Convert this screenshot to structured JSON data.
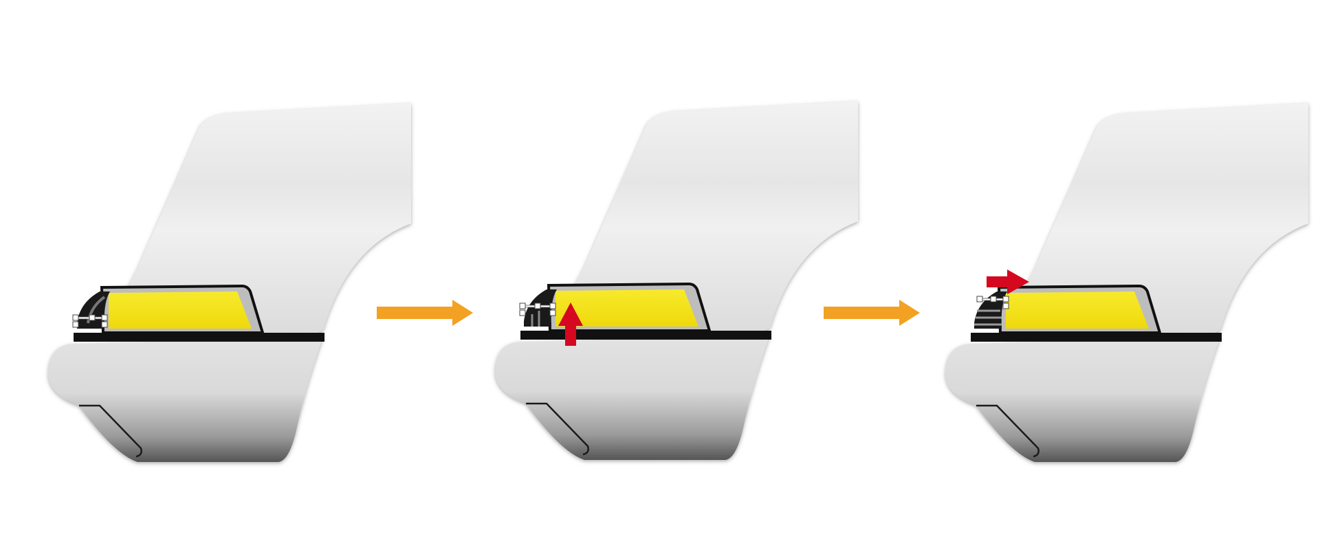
{
  "diagram": {
    "steps": [
      {
        "id": 1,
        "action_arrow": null
      },
      {
        "id": 2,
        "action_arrow": "up"
      },
      {
        "id": 3,
        "action_arrow": "right"
      }
    ],
    "transition_arrows": 2,
    "colors": {
      "background": "#ffffff",
      "body_light": "#e9e9e9",
      "body_shadow": "#8a8a8a",
      "lamp_yellow": "#f5e51a",
      "trim_black": "#111111",
      "transition_arrow": "#f2a122",
      "action_arrow": "#d5081f"
    },
    "icons": {
      "transition_arrow": "arrow-right-icon",
      "action_up": "arrow-up-icon",
      "action_right": "arrow-right-icon",
      "clips": "clip-icon"
    }
  }
}
